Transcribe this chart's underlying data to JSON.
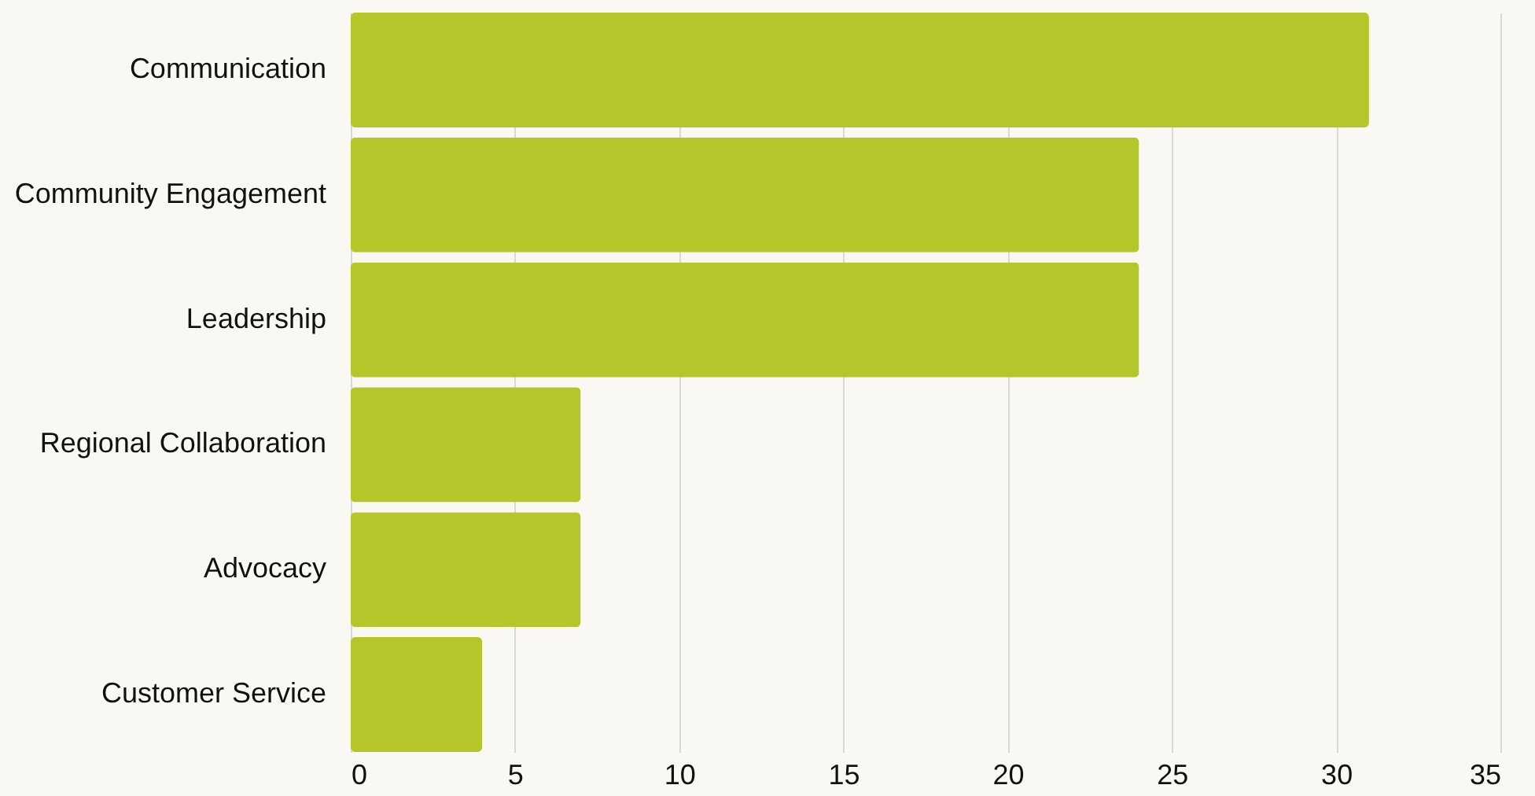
{
  "chart_data": {
    "type": "bar",
    "orientation": "horizontal",
    "categories": [
      "Communication",
      "Community Engagement",
      "Leadership",
      "Regional Collaboration",
      "Advocacy",
      "Customer Service"
    ],
    "values": [
      31,
      24,
      24,
      7,
      7,
      4
    ],
    "color": "#b5c62b",
    "xlim": [
      0,
      35
    ],
    "xticks": [
      0,
      5,
      10,
      15,
      20,
      25,
      30,
      35
    ],
    "grid": "x"
  }
}
